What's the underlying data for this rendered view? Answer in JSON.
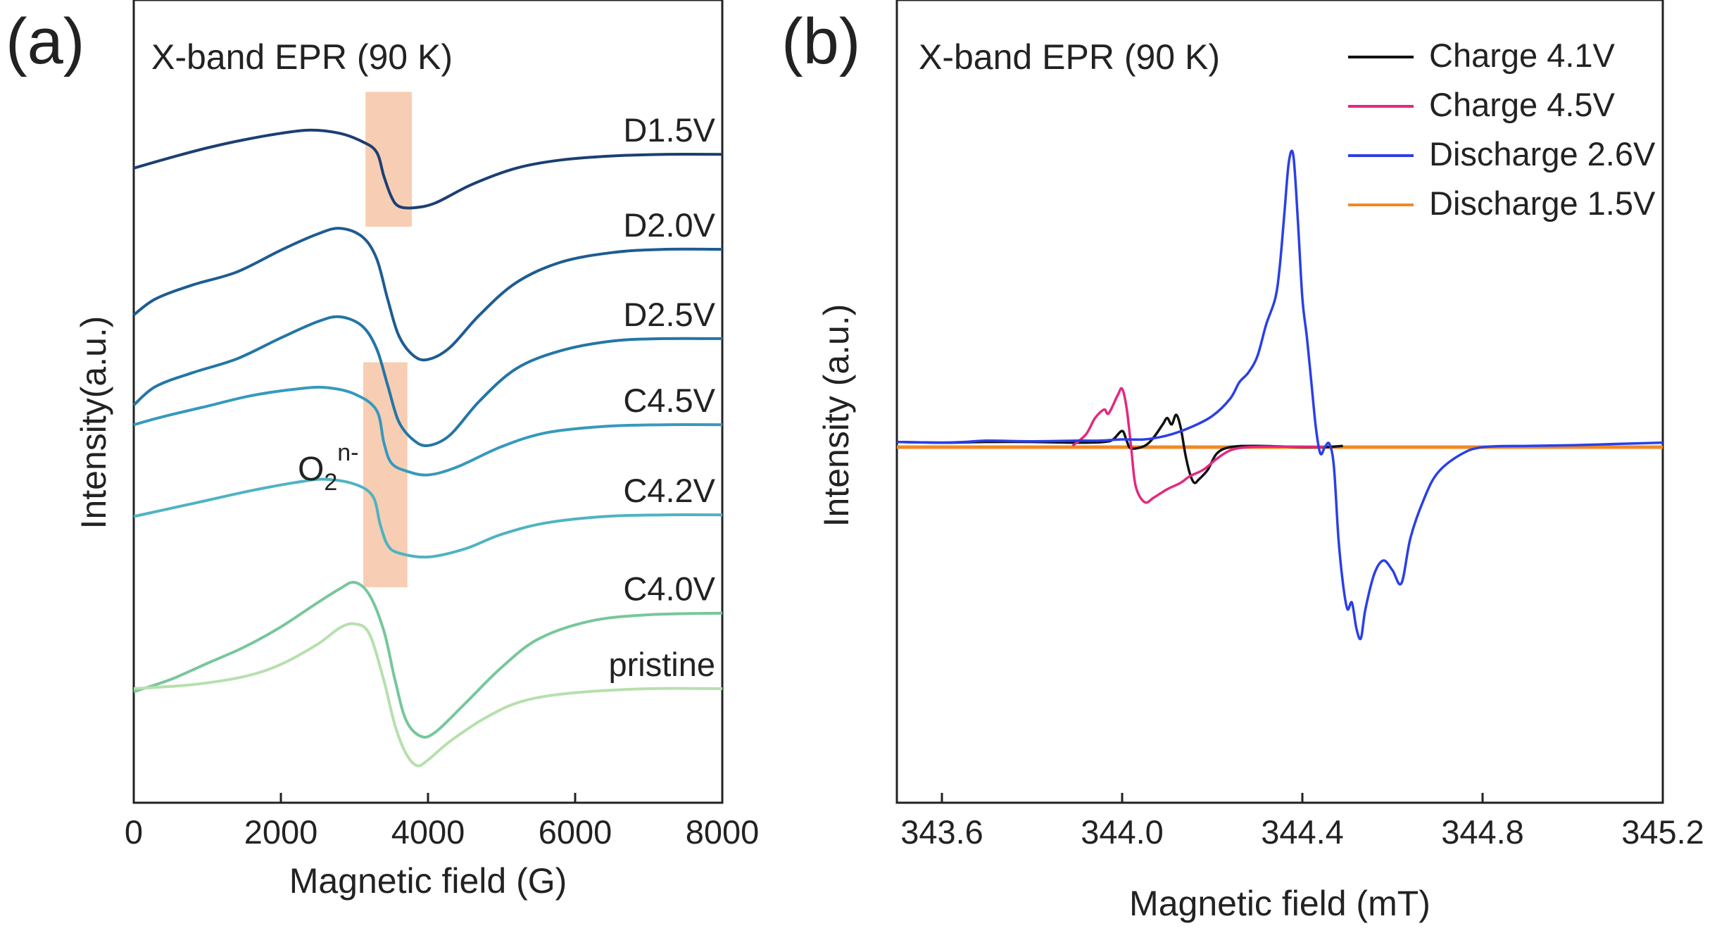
{
  "figure": {
    "panels": [
      "(a)",
      "(b)"
    ]
  },
  "chart_data": [
    {
      "panel": "(a)",
      "type": "line",
      "title": "X-band EPR (90 K)",
      "xlabel": "Magnetic field (G)",
      "ylabel": "Intensity(a.u.)",
      "xlim": [
        0,
        8000
      ],
      "xticks": [
        0,
        2000,
        4000,
        6000,
        8000
      ],
      "xtick_labels": [
        "0",
        "2000",
        "4000",
        "6000",
        "8000"
      ],
      "yticks_shown": false,
      "annotation": {
        "base": "O",
        "sub": "2",
        "sup": "n-"
      },
      "highlight_bands": [
        {
          "x_range": [
            3150,
            3780
          ],
          "spans": [
            "D1.5V"
          ]
        },
        {
          "x_range": [
            3120,
            3720
          ],
          "spans": [
            "C4.5V",
            "C4.2V"
          ]
        }
      ],
      "series": [
        {
          "name": "D1.5V",
          "color": "#1b3f73",
          "offset": 0,
          "points": [
            [
              0,
              -0.25
            ],
            [
              500,
              -0.12
            ],
            [
              1000,
              0
            ],
            [
              1500,
              0.1
            ],
            [
              2000,
              0.18
            ],
            [
              2400,
              0.22
            ],
            [
              2800,
              0.18
            ],
            [
              3100,
              0.08
            ],
            [
              3300,
              -0.05
            ],
            [
              3400,
              -0.35
            ],
            [
              3500,
              -0.6
            ],
            [
              3600,
              -0.72
            ],
            [
              3800,
              -0.74
            ],
            [
              4100,
              -0.68
            ],
            [
              4600,
              -0.45
            ],
            [
              5200,
              -0.25
            ],
            [
              5800,
              -0.15
            ],
            [
              6500,
              -0.1
            ],
            [
              7200,
              -0.08
            ],
            [
              8000,
              -0.08
            ]
          ]
        },
        {
          "name": "D2.0V",
          "color": "#1d5c93",
          "offset": 1,
          "points": [
            [
              0,
              -0.95
            ],
            [
              300,
              -0.75
            ],
            [
              800,
              -0.58
            ],
            [
              1400,
              -0.42
            ],
            [
              2000,
              -0.15
            ],
            [
              2500,
              0.05
            ],
            [
              2800,
              0.12
            ],
            [
              3100,
              0.02
            ],
            [
              3300,
              -0.25
            ],
            [
              3450,
              -0.75
            ],
            [
              3600,
              -1.2
            ],
            [
              3800,
              -1.45
            ],
            [
              4000,
              -1.5
            ],
            [
              4300,
              -1.35
            ],
            [
              4700,
              -0.95
            ],
            [
              5200,
              -0.55
            ],
            [
              5800,
              -0.3
            ],
            [
              6500,
              -0.18
            ],
            [
              7200,
              -0.14
            ],
            [
              8000,
              -0.14
            ]
          ]
        },
        {
          "name": "D2.5V",
          "color": "#2276a6",
          "offset": 2,
          "points": [
            [
              0,
              -0.95
            ],
            [
              300,
              -0.72
            ],
            [
              800,
              -0.55
            ],
            [
              1400,
              -0.38
            ],
            [
              2000,
              -0.12
            ],
            [
              2500,
              0.08
            ],
            [
              2800,
              0.14
            ],
            [
              3100,
              0.03
            ],
            [
              3300,
              -0.25
            ],
            [
              3450,
              -0.7
            ],
            [
              3600,
              -1.15
            ],
            [
              3800,
              -1.38
            ],
            [
              4000,
              -1.45
            ],
            [
              4300,
              -1.32
            ],
            [
              4700,
              -0.9
            ],
            [
              5200,
              -0.5
            ],
            [
              5800,
              -0.28
            ],
            [
              6500,
              -0.16
            ],
            [
              7200,
              -0.13
            ],
            [
              8000,
              -0.13
            ]
          ]
        },
        {
          "name": "C4.5V",
          "color": "#3699be",
          "offset": 3,
          "points": [
            [
              0,
              -0.08
            ],
            [
              400,
              0.02
            ],
            [
              1000,
              0.15
            ],
            [
              1600,
              0.28
            ],
            [
              2200,
              0.36
            ],
            [
              2600,
              0.38
            ],
            [
              3000,
              0.3
            ],
            [
              3300,
              0.1
            ],
            [
              3400,
              -0.3
            ],
            [
              3500,
              -0.55
            ],
            [
              3700,
              -0.65
            ],
            [
              4000,
              -0.7
            ],
            [
              4400,
              -0.6
            ],
            [
              5000,
              -0.35
            ],
            [
              5600,
              -0.18
            ],
            [
              6400,
              -0.1
            ],
            [
              7200,
              -0.08
            ],
            [
              8000,
              -0.08
            ]
          ]
        },
        {
          "name": "C4.2V",
          "color": "#4fb3c2",
          "offset": 4,
          "points": [
            [
              0,
              -0.1
            ],
            [
              400,
              -0.02
            ],
            [
              1000,
              0.1
            ],
            [
              1600,
              0.22
            ],
            [
              2200,
              0.32
            ],
            [
              2600,
              0.36
            ],
            [
              3000,
              0.3
            ],
            [
              3250,
              0.15
            ],
            [
              3350,
              -0.2
            ],
            [
              3450,
              -0.45
            ],
            [
              3600,
              -0.55
            ],
            [
              4000,
              -0.6
            ],
            [
              4500,
              -0.5
            ],
            [
              5000,
              -0.32
            ],
            [
              5600,
              -0.18
            ],
            [
              6400,
              -0.1
            ],
            [
              7200,
              -0.08
            ],
            [
              8000,
              -0.08
            ]
          ]
        },
        {
          "name": "C4.0V",
          "color": "#77c79b",
          "offset": 5,
          "points": [
            [
              0,
              -1.15
            ],
            [
              500,
              -1.0
            ],
            [
              1000,
              -0.8
            ],
            [
              1500,
              -0.6
            ],
            [
              2000,
              -0.35
            ],
            [
              2500,
              -0.05
            ],
            [
              2800,
              0.12
            ],
            [
              3000,
              0.2
            ],
            [
              3200,
              0.05
            ],
            [
              3400,
              -0.4
            ],
            [
              3550,
              -1.0
            ],
            [
              3700,
              -1.5
            ],
            [
              3900,
              -1.7
            ],
            [
              4100,
              -1.65
            ],
            [
              4500,
              -1.3
            ],
            [
              5000,
              -0.85
            ],
            [
              5500,
              -0.5
            ],
            [
              6200,
              -0.28
            ],
            [
              7000,
              -0.2
            ],
            [
              8000,
              -0.18
            ]
          ]
        },
        {
          "name": "pristine",
          "color": "#b6e0ad",
          "offset": 6,
          "points": [
            [
              0,
              0
            ],
            [
              800,
              0.05
            ],
            [
              1500,
              0.15
            ],
            [
              2000,
              0.3
            ],
            [
              2500,
              0.55
            ],
            [
              2800,
              0.75
            ],
            [
              3000,
              0.8
            ],
            [
              3200,
              0.68
            ],
            [
              3400,
              0.1
            ],
            [
              3550,
              -0.45
            ],
            [
              3700,
              -0.8
            ],
            [
              3850,
              -0.95
            ],
            [
              4000,
              -0.88
            ],
            [
              4300,
              -0.65
            ],
            [
              4800,
              -0.35
            ],
            [
              5300,
              -0.15
            ],
            [
              6000,
              -0.05
            ],
            [
              7000,
              0
            ],
            [
              8000,
              0
            ]
          ]
        }
      ]
    },
    {
      "panel": "(b)",
      "type": "line",
      "title": "X-band EPR (90 K)",
      "xlabel": "Magnetic field (mT)",
      "ylabel": "Intensity (a.u.)",
      "xlim": [
        343.5,
        345.2
      ],
      "xticks": [
        343.6,
        344.0,
        344.4,
        344.8,
        345.2
      ],
      "xtick_labels": [
        "343.6",
        "344.0",
        "344.4",
        "344.8",
        "345.2"
      ],
      "yticks_shown": false,
      "legend": {
        "position": "top-right"
      },
      "series": [
        {
          "name": "Charge 4.1V",
          "color": "#111111",
          "points": [
            [
              343.5,
              0.08
            ],
            [
              343.6,
              0.07
            ],
            [
              343.7,
              0.08
            ],
            [
              343.8,
              0.08
            ],
            [
              343.9,
              0.07
            ],
            [
              343.96,
              0.08
            ],
            [
              343.98,
              0.12
            ],
            [
              344.0,
              0.25
            ],
            [
              344.01,
              0.1
            ],
            [
              344.02,
              -0.02
            ],
            [
              344.05,
              0.02
            ],
            [
              344.07,
              0.15
            ],
            [
              344.09,
              0.35
            ],
            [
              344.1,
              0.45
            ],
            [
              344.11,
              0.35
            ],
            [
              344.12,
              0.5
            ],
            [
              344.13,
              0.3
            ],
            [
              344.14,
              -0.1
            ],
            [
              344.15,
              -0.4
            ],
            [
              344.16,
              -0.55
            ],
            [
              344.17,
              -0.5
            ],
            [
              344.19,
              -0.35
            ],
            [
              344.21,
              -0.1
            ],
            [
              344.24,
              0
            ],
            [
              344.3,
              0.02
            ],
            [
              344.4,
              0
            ],
            [
              344.45,
              0
            ],
            [
              344.49,
              0.02
            ]
          ]
        },
        {
          "name": "Charge 4.5V",
          "color": "#e4287e",
          "points": [
            [
              343.89,
              0.02
            ],
            [
              343.92,
              0.2
            ],
            [
              343.94,
              0.45
            ],
            [
              343.96,
              0.58
            ],
            [
              343.97,
              0.52
            ],
            [
              343.99,
              0.8
            ],
            [
              344.0,
              0.9
            ],
            [
              344.01,
              0.6
            ],
            [
              344.02,
              0
            ],
            [
              344.03,
              -0.6
            ],
            [
              344.05,
              -0.85
            ],
            [
              344.07,
              -0.78
            ],
            [
              344.1,
              -0.65
            ],
            [
              344.13,
              -0.55
            ],
            [
              344.15,
              -0.45
            ],
            [
              344.18,
              -0.35
            ],
            [
              344.21,
              -0.18
            ],
            [
              344.24,
              -0.05
            ],
            [
              344.28,
              0
            ],
            [
              344.35,
              0.01
            ],
            [
              344.45,
              0
            ]
          ]
        },
        {
          "name": "Discharge 2.6V",
          "color": "#2a3fe8",
          "points": [
            [
              343.5,
              0.08
            ],
            [
              343.6,
              0.07
            ],
            [
              343.65,
              0.08
            ],
            [
              343.7,
              0.1
            ],
            [
              343.8,
              0.09
            ],
            [
              343.9,
              0.1
            ],
            [
              343.95,
              0.1
            ],
            [
              344.0,
              0.12
            ],
            [
              344.05,
              0.12
            ],
            [
              344.1,
              0.18
            ],
            [
              344.15,
              0.3
            ],
            [
              344.2,
              0.48
            ],
            [
              344.24,
              0.75
            ],
            [
              344.26,
              1.0
            ],
            [
              344.28,
              1.15
            ],
            [
              344.3,
              1.4
            ],
            [
              344.32,
              1.9
            ],
            [
              344.34,
              2.3
            ],
            [
              344.35,
              2.8
            ],
            [
              344.36,
              3.6
            ],
            [
              344.37,
              4.4
            ],
            [
              344.38,
              4.5
            ],
            [
              344.39,
              3.5
            ],
            [
              344.4,
              2.3
            ],
            [
              344.41,
              1.7
            ],
            [
              344.42,
              1.0
            ],
            [
              344.43,
              0.3
            ],
            [
              344.44,
              -0.1
            ],
            [
              344.45,
              0
            ],
            [
              344.46,
              0.05
            ],
            [
              344.47,
              -0.3
            ],
            [
              344.48,
              -1.4
            ],
            [
              344.49,
              -2.1
            ],
            [
              344.5,
              -2.5
            ],
            [
              344.51,
              -2.4
            ],
            [
              344.52,
              -2.8
            ],
            [
              344.53,
              -2.95
            ],
            [
              344.54,
              -2.5
            ],
            [
              344.56,
              -1.95
            ],
            [
              344.58,
              -1.75
            ],
            [
              344.6,
              -1.9
            ],
            [
              344.62,
              -2.1
            ],
            [
              344.64,
              -1.4
            ],
            [
              344.67,
              -0.8
            ],
            [
              344.7,
              -0.4
            ],
            [
              344.75,
              -0.12
            ],
            [
              344.8,
              0
            ],
            [
              344.9,
              0.02
            ],
            [
              345.0,
              0.03
            ],
            [
              345.1,
              0.05
            ],
            [
              345.2,
              0.07
            ]
          ]
        },
        {
          "name": "Discharge 1.5V",
          "color": "#f08a24",
          "points": [
            [
              343.5,
              0
            ],
            [
              343.8,
              0
            ],
            [
              344.1,
              0
            ],
            [
              344.4,
              0
            ],
            [
              344.7,
              0
            ],
            [
              345.0,
              0
            ],
            [
              345.2,
              0
            ]
          ]
        }
      ]
    }
  ]
}
